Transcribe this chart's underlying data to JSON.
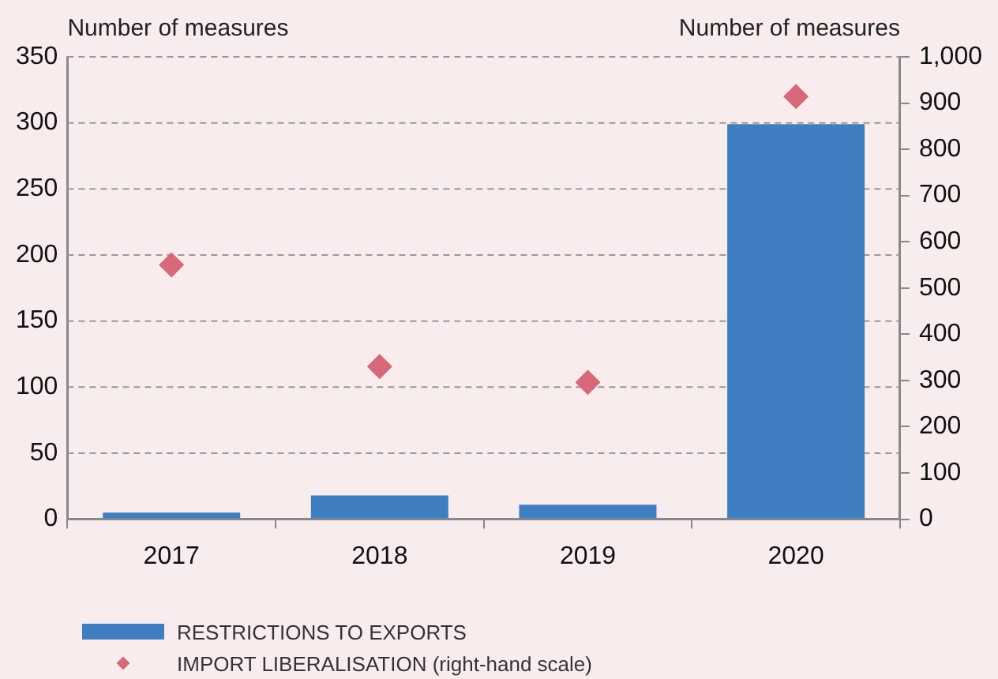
{
  "chart_data": {
    "type": "bar",
    "ylabel": "Number of measures",
    "y2label": "Number of measures",
    "categories": [
      "2017",
      "2018",
      "2019",
      "2020"
    ],
    "series": [
      {
        "name": "RESTRICTIONS TO EXPORTS",
        "color": "#3f7fc1",
        "values": [
          5,
          18,
          11,
          299
        ]
      },
      {
        "name": "IMPORT LIBERALISATION (right-hand scale)",
        "type": "scatter",
        "axis": "y2",
        "color": "#d9677a",
        "marker": "diamond",
        "values": [
          550,
          330,
          296,
          914
        ]
      }
    ],
    "ylim": [
      0,
      350
    ],
    "yticks": [
      0,
      50,
      100,
      150,
      200,
      250,
      300,
      350
    ],
    "y2lim": [
      0,
      1000
    ],
    "y2ticks": [
      0,
      100,
      200,
      300,
      400,
      500,
      600,
      700,
      800,
      900,
      {
        "value": 1000,
        "label": "1,000"
      }
    ],
    "grid": "y",
    "legend": "bottom left"
  }
}
